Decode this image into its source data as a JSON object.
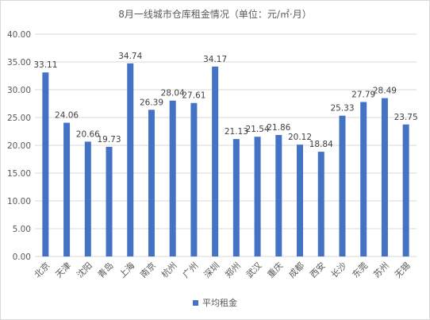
{
  "chart_data": {
    "type": "bar",
    "title": "8月一线城市仓库租金情况（单位：元/㎡·月）",
    "categories": [
      "北京",
      "天津",
      "沈阳",
      "青岛",
      "上海",
      "南京",
      "杭州",
      "广州",
      "深圳",
      "郑州",
      "武汉",
      "重庆",
      "成都",
      "西安",
      "长沙",
      "东莞",
      "苏州",
      "无锡"
    ],
    "series": [
      {
        "name": "平均租金",
        "values": [
          33.11,
          24.06,
          20.66,
          19.73,
          34.74,
          26.39,
          28.04,
          27.61,
          34.17,
          21.13,
          21.54,
          21.86,
          20.12,
          18.84,
          25.33,
          27.79,
          28.49,
          23.75
        ]
      }
    ],
    "value_labels": [
      "33.11",
      "24.06",
      "20.66",
      "19.73",
      "34.74",
      "26.39",
      "28.04",
      "27.61",
      "34.17",
      "21.13",
      "21.54",
      "21.86",
      "20.12",
      "18.84",
      "25.33",
      "27.79",
      "28.49",
      "23.75"
    ],
    "ylim": [
      0,
      40
    ],
    "yticks": [
      "0.00",
      "5.00",
      "10.00",
      "15.00",
      "20.00",
      "25.00",
      "30.00",
      "35.00",
      "40.00"
    ],
    "grid": true,
    "legend_position": "bottom",
    "bar_color": "#4472c4",
    "grid_color": "#d9d9d9"
  }
}
